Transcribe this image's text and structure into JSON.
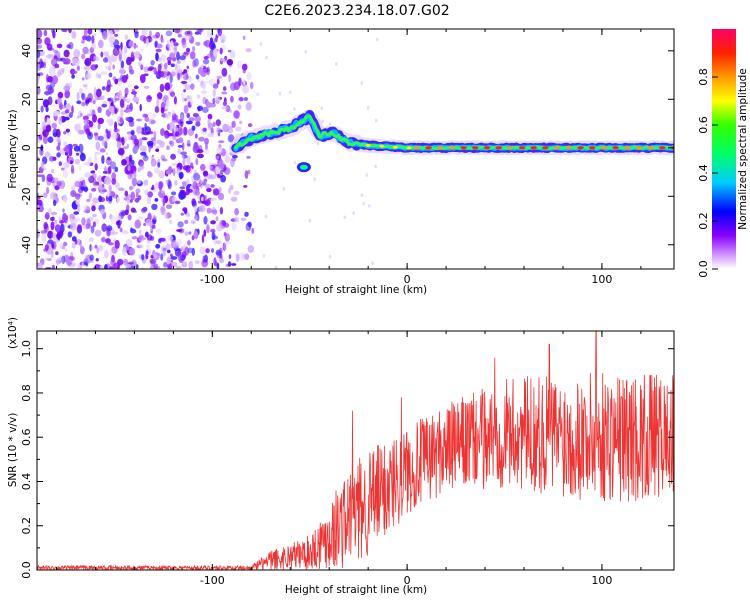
{
  "title": "C2E6.2023.234.18.07.G02",
  "chart_data": [
    {
      "type": "heatmap",
      "xlabel": "Height of straight line (km)",
      "ylabel": "Frequency (Hz)",
      "xlim": [
        -190,
        137
      ],
      "ylim": [
        -50,
        49
      ],
      "xticks": [
        -100,
        0,
        100
      ],
      "yticks": [
        -40,
        -20,
        0,
        20,
        40
      ],
      "colorbar": {
        "label": "Normalized spectral amplitude",
        "range": [
          0,
          1
        ],
        "ticks": [
          "0.0",
          "0.2",
          "0.4",
          "0.6",
          "0.8"
        ]
      },
      "features": {
        "noise_region_x": [
          -190,
          -85
        ],
        "signal_trace": [
          {
            "x": -88,
            "y": 0
          },
          {
            "x": -80,
            "y": 4
          },
          {
            "x": -70,
            "y": 6
          },
          {
            "x": -60,
            "y": 8
          },
          {
            "x": -50,
            "y": 13
          },
          {
            "x": -45,
            "y": 5
          },
          {
            "x": -38,
            "y": 6
          },
          {
            "x": -30,
            "y": 2
          },
          {
            "x": -20,
            "y": 1
          },
          {
            "x": 0,
            "y": 0
          },
          {
            "x": 137,
            "y": 0
          }
        ],
        "secondary_blob": {
          "x": -53,
          "y": -8
        }
      }
    },
    {
      "type": "line",
      "xlabel": "Height of straight line (km)",
      "ylabel": "SNR (10 * v/v)",
      "scale_label": "(x10⁴)",
      "xlim": [
        -190,
        137
      ],
      "ylim": [
        0,
        1.08
      ],
      "xticks": [
        -100,
        0,
        100
      ],
      "yticks": [
        "0.0",
        "0.2",
        "0.4",
        "0.6",
        "0.8",
        "1.0"
      ],
      "series": [
        {
          "name": "SNR",
          "color": "#ee3333",
          "envelope": [
            {
              "x": -190,
              "mean": 0.01,
              "spread": 0.01
            },
            {
              "x": -80,
              "mean": 0.01,
              "spread": 0.01
            },
            {
              "x": -70,
              "mean": 0.04,
              "spread": 0.05
            },
            {
              "x": -50,
              "mean": 0.08,
              "spread": 0.08
            },
            {
              "x": -35,
              "mean": 0.2,
              "spread": 0.2
            },
            {
              "x": -20,
              "mean": 0.3,
              "spread": 0.25
            },
            {
              "x": 0,
              "mean": 0.45,
              "spread": 0.2
            },
            {
              "x": 20,
              "mean": 0.55,
              "spread": 0.2
            },
            {
              "x": 50,
              "mean": 0.62,
              "spread": 0.25
            },
            {
              "x": 100,
              "mean": 0.6,
              "spread": 0.3
            },
            {
              "x": 137,
              "mean": 0.6,
              "spread": 0.28
            }
          ],
          "peaks": [
            {
              "x": -28,
              "y": 0.72
            },
            {
              "x": -3,
              "y": 0.78
            },
            {
              "x": 45,
              "y": 0.96
            },
            {
              "x": 73,
              "y": 1.02
            },
            {
              "x": 97,
              "y": 1.08
            },
            {
              "x": 127,
              "y": 0.87
            }
          ]
        }
      ]
    }
  ]
}
